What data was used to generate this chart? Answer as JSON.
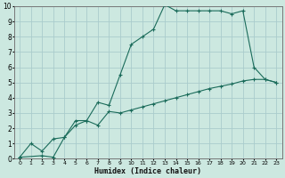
{
  "xlabel": "Humidex (Indice chaleur)",
  "ylabel": "",
  "bg_color": "#cce8e0",
  "grid_color": "#aacccc",
  "line_color": "#1a6b5a",
  "xlim": [
    -0.5,
    23.5
  ],
  "ylim": [
    0,
    10
  ],
  "xticks": [
    0,
    1,
    2,
    3,
    4,
    5,
    6,
    7,
    8,
    9,
    10,
    11,
    12,
    13,
    14,
    15,
    16,
    17,
    18,
    19,
    20,
    21,
    22,
    23
  ],
  "yticks": [
    0,
    1,
    2,
    3,
    4,
    5,
    6,
    7,
    8,
    9,
    10
  ],
  "line1_x": [
    0,
    1,
    2,
    3,
    4,
    5,
    6,
    7,
    8,
    9,
    10,
    11,
    12,
    13,
    14,
    15,
    16,
    17,
    18,
    19,
    20,
    21,
    22,
    23
  ],
  "line1_y": [
    0.1,
    1.0,
    0.5,
    1.3,
    1.4,
    2.5,
    2.5,
    3.7,
    3.5,
    5.5,
    7.5,
    8.0,
    8.5,
    10.1,
    9.7,
    9.7,
    9.7,
    9.7,
    9.7,
    9.5,
    9.7,
    6.0,
    5.2,
    5.0
  ],
  "line2_x": [
    0,
    2,
    3,
    4,
    5,
    6,
    7,
    8,
    9,
    10,
    11,
    12,
    13,
    14,
    15,
    16,
    17,
    18,
    19,
    20,
    21,
    22,
    23
  ],
  "line2_y": [
    0.1,
    0.2,
    0.1,
    1.4,
    2.2,
    2.5,
    2.2,
    3.1,
    3.0,
    3.2,
    3.4,
    3.6,
    3.8,
    4.0,
    4.2,
    4.4,
    4.6,
    4.75,
    4.9,
    5.1,
    5.2,
    5.2,
    5.0
  ]
}
